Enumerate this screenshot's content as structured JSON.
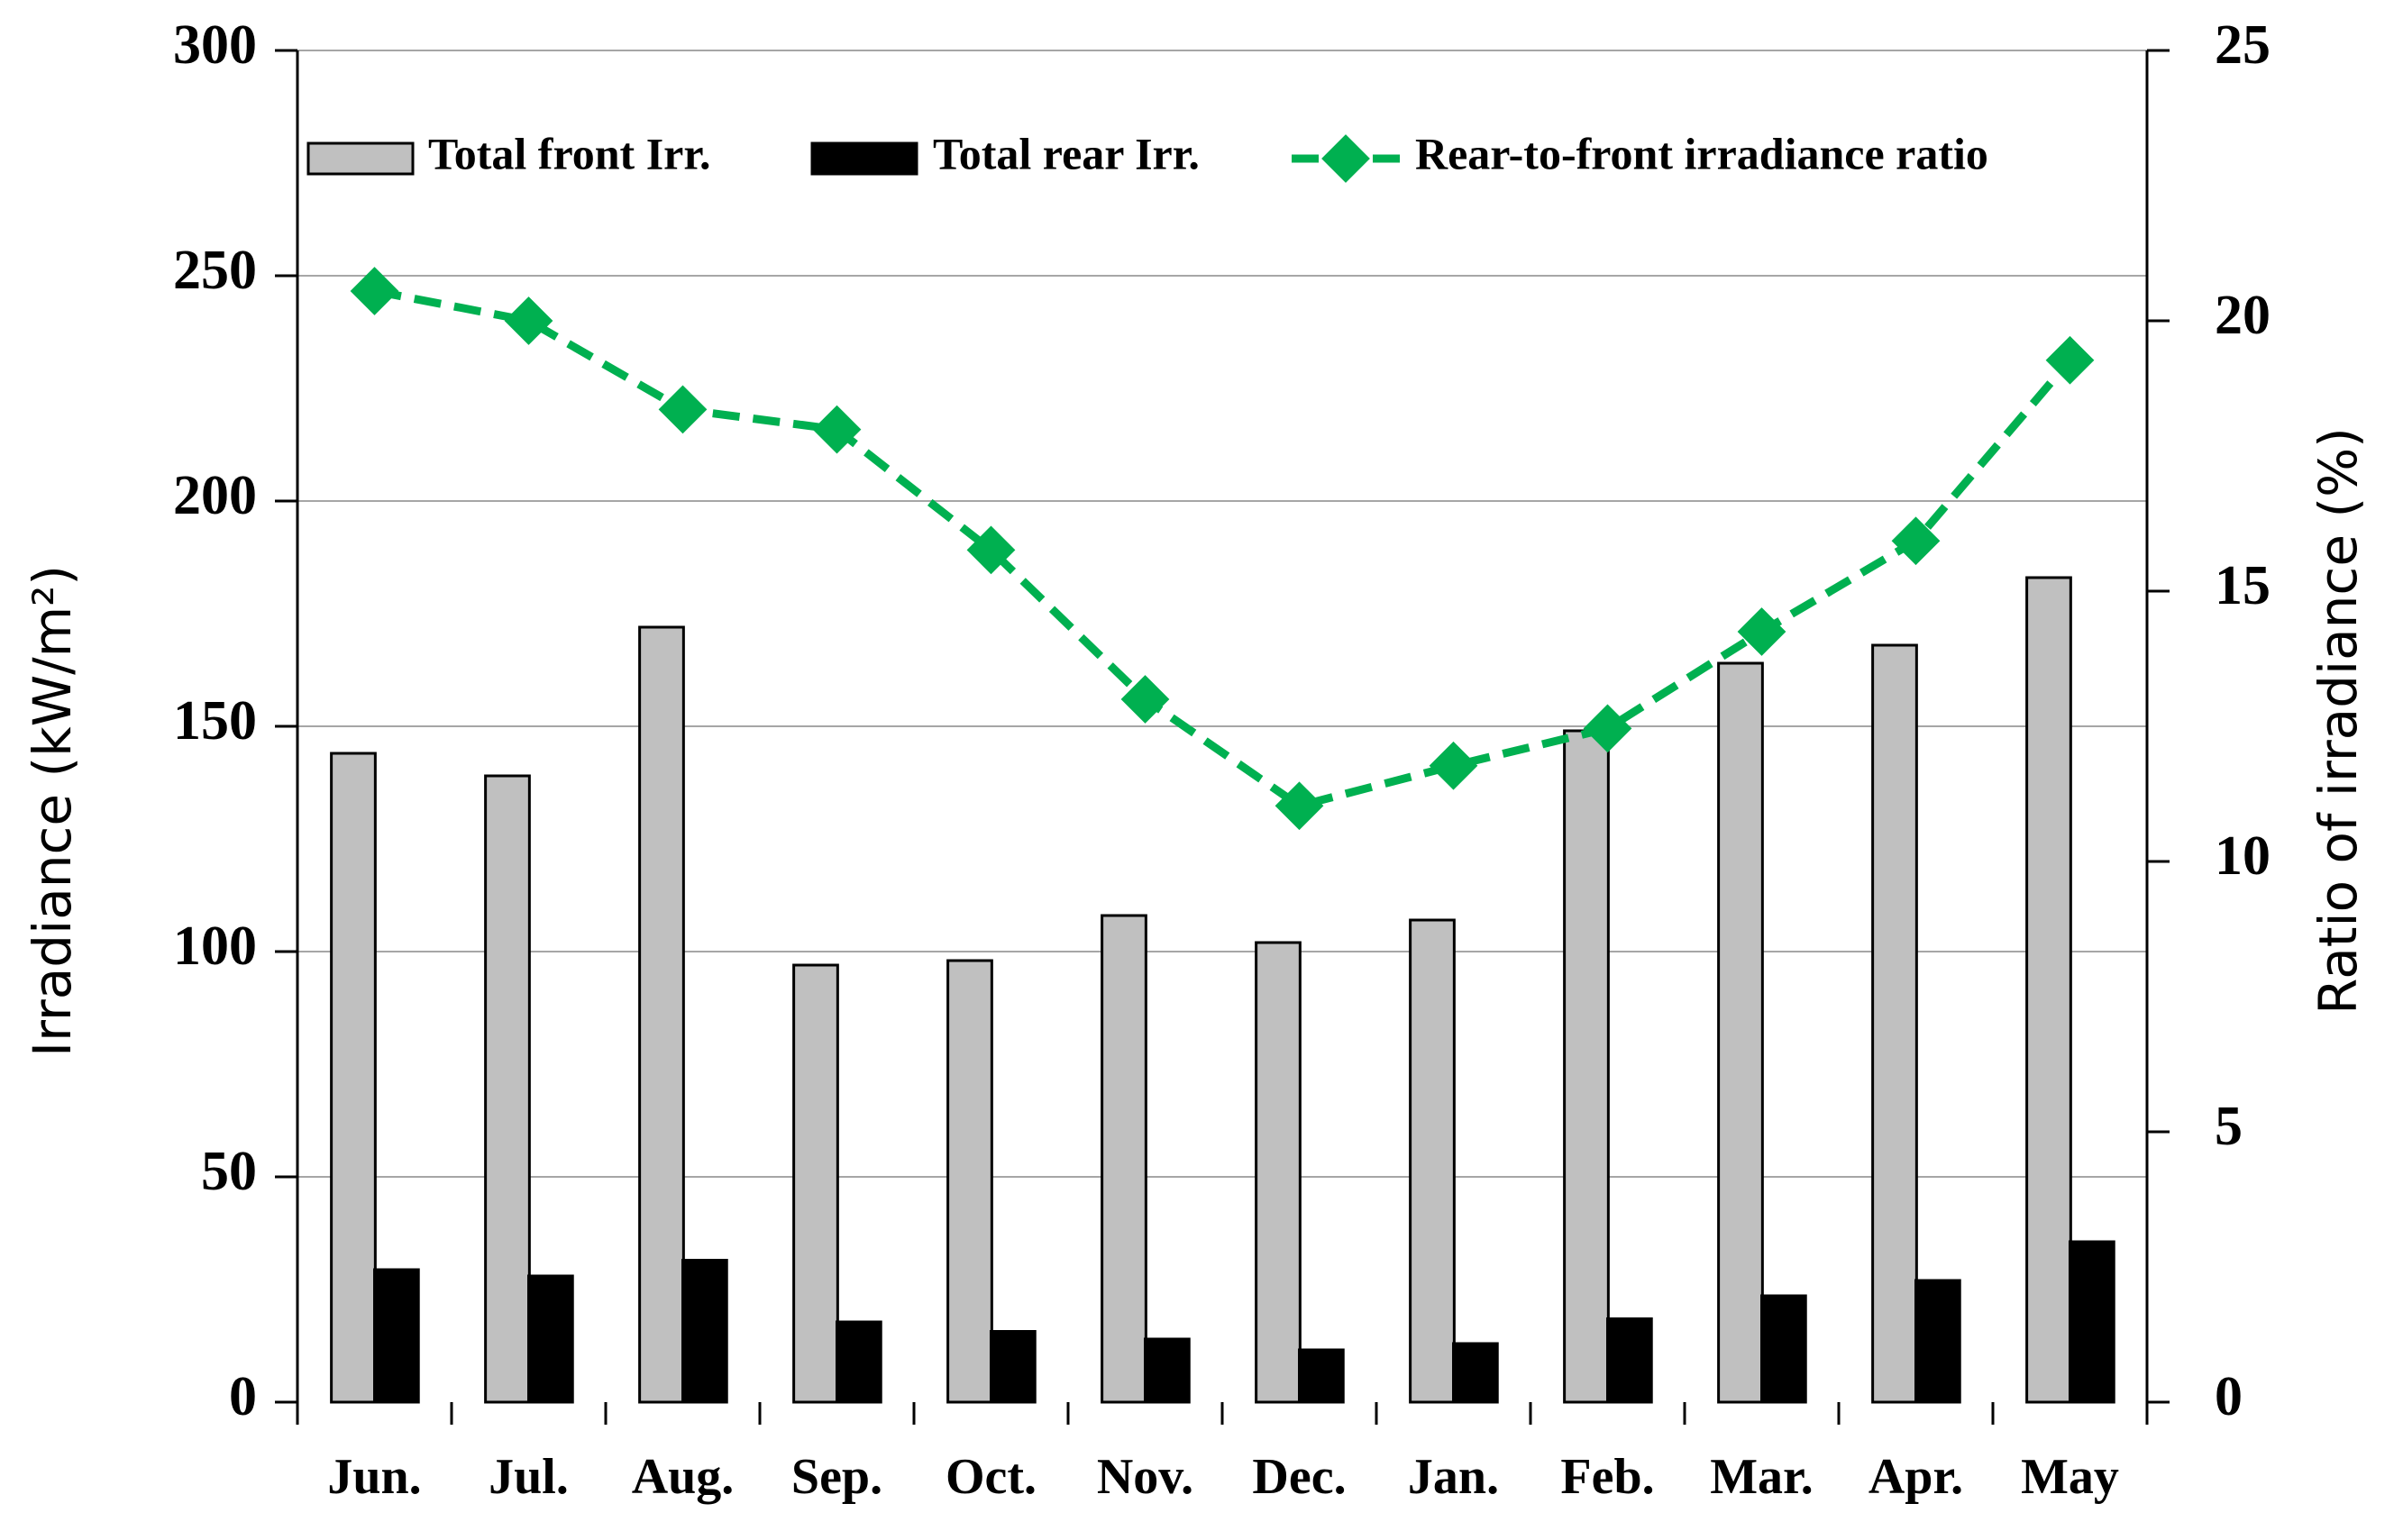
{
  "chart_data": {
    "type": "bar_line",
    "ylabel": "Irradiance (kW/m²)",
    "y2label": "Ratio of irradiance (%)",
    "categories": [
      "Jun.",
      "Jul.",
      "Aug.",
      "Sep.",
      "Oct.",
      "Nov.",
      "Dec.",
      "Jan.",
      "Feb.",
      "Mar.",
      "Apr.",
      "May"
    ],
    "series": [
      {
        "name": "Total front Irr.",
        "type": "bar",
        "color": "#c0c0c0",
        "values": [
          144,
          139,
          172,
          97,
          98,
          108,
          102,
          107,
          149,
          164,
          168,
          183
        ]
      },
      {
        "name": "Total rear Irr.",
        "type": "bar",
        "color": "#000000",
        "values": [
          29.4,
          28,
          31.5,
          17.8,
          15.7,
          14,
          11.6,
          13,
          18.5,
          23.6,
          27,
          35.6
        ]
      },
      {
        "name": "Rear-to-front irradiance ratio",
        "type": "line",
        "axis": "y2",
        "color": "#00b050",
        "values": [
          20.55,
          20.0,
          18.36,
          17.99,
          15.76,
          13.0,
          11.03,
          11.77,
          12.46,
          14.25,
          15.93,
          19.27
        ]
      }
    ],
    "ylim": [
      0,
      300
    ],
    "yticks": [
      0,
      50,
      100,
      150,
      200,
      250,
      300
    ],
    "y2lim": [
      0,
      25
    ],
    "y2ticks": [
      0,
      5,
      10,
      15,
      20,
      25
    ],
    "grid": true,
    "legend": "top"
  }
}
